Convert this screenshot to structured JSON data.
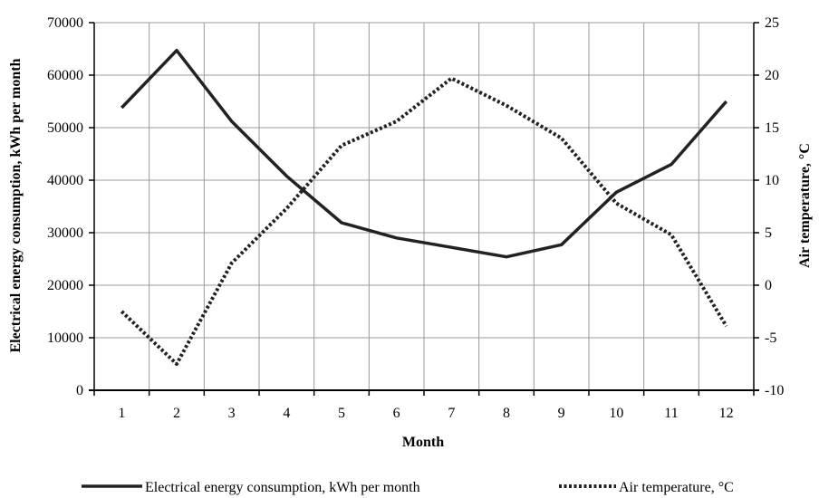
{
  "chart_data": {
    "type": "line",
    "x": [
      1,
      2,
      3,
      4,
      5,
      6,
      7,
      8,
      9,
      10,
      11,
      12
    ],
    "xlabel": "Month",
    "ylabel_left": "Electrical energy consumption, kWh per month",
    "ylabel_right": "Air temperature, °C",
    "ylim_left": [
      0,
      70000
    ],
    "ylim_right": [
      -10,
      25
    ],
    "yticks_left": [
      0,
      10000,
      20000,
      30000,
      40000,
      50000,
      60000,
      70000
    ],
    "yticks_right": [
      -10,
      -5,
      0,
      5,
      10,
      15,
      20,
      25
    ],
    "grid": true,
    "legend_position": "bottom",
    "series": [
      {
        "name": "Electrical energy consumption, kWh per month",
        "axis": "left",
        "style": "solid",
        "color": "#222222",
        "values": [
          53800,
          64700,
          51200,
          40800,
          31900,
          29000,
          27200,
          25400,
          27700,
          37700,
          43000,
          55000
        ]
      },
      {
        "name": "Air temperature, °C",
        "axis": "right",
        "style": "dotted",
        "color": "#222222",
        "values": [
          -2.5,
          -7.5,
          2.1,
          7.3,
          13.3,
          15.6,
          19.7,
          17.1,
          14.0,
          7.8,
          4.8,
          -3.9
        ]
      }
    ]
  }
}
